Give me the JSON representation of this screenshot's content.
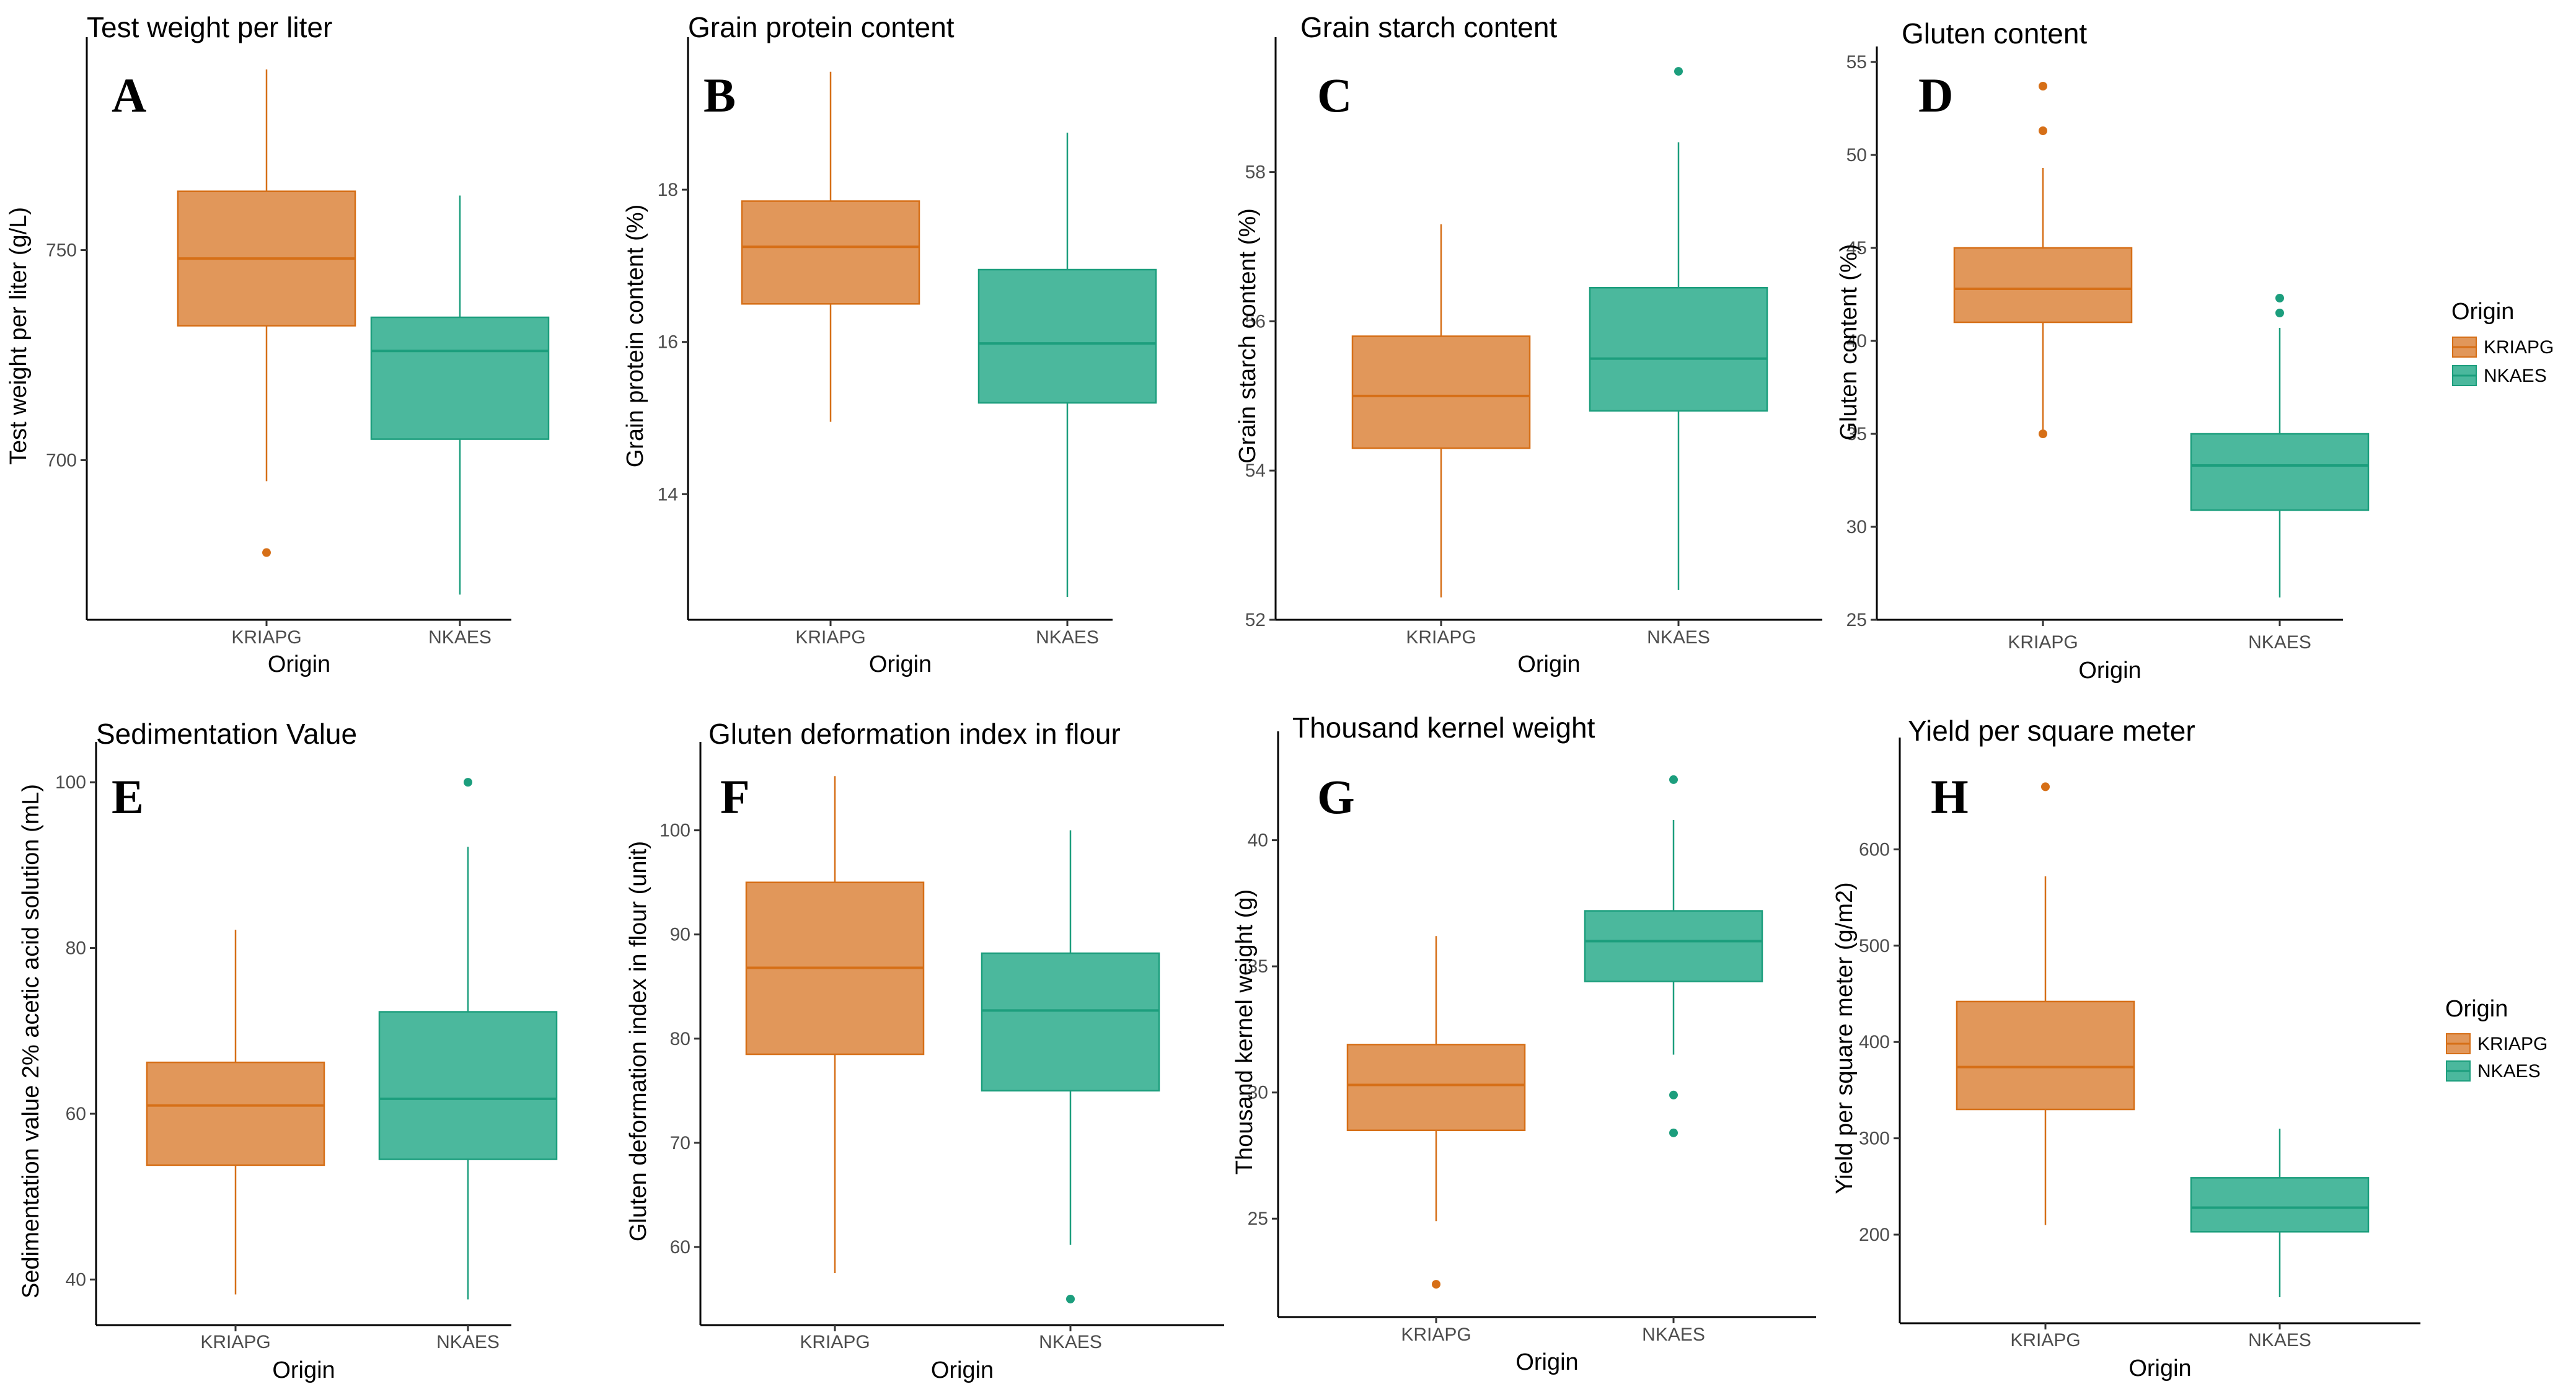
{
  "colors": {
    "KRIAPG": {
      "fill": "#E1975A",
      "line": "#D66F17"
    },
    "NKAES": {
      "fill": "#4BB89D",
      "line": "#1C9E7D"
    }
  },
  "legend": {
    "title": "Origin",
    "entries": [
      "KRIAPG",
      "NKAES"
    ]
  },
  "chart_data": [
    {
      "type": "boxplot",
      "panel": "A",
      "title": "Test weight per liter",
      "xlabel": "Origin",
      "ylabel": "Test weight per liter (g/L)",
      "ylim": [
        662,
        797
      ],
      "yticks": [
        700,
        750
      ],
      "legend": false,
      "categories": [
        "KRIAPG",
        "NKAES"
      ],
      "boxes": [
        {
          "name": "KRIAPG",
          "min": 695,
          "q1": 732,
          "median": 748,
          "q3": 764,
          "max": 793,
          "outliers": [
            678
          ]
        },
        {
          "name": "NKAES",
          "min": 668,
          "q1": 705,
          "median": 726,
          "q3": 734,
          "max": 763,
          "outliers": []
        }
      ]
    },
    {
      "type": "boxplot",
      "panel": "B",
      "title": "Grain protein content",
      "xlabel": "Origin",
      "ylabel": "Grain protein content (%)",
      "ylim": [
        12.35,
        19.8
      ],
      "yticks": [
        14,
        16,
        18
      ],
      "legend": false,
      "categories": [
        "KRIAPG",
        "NKAES"
      ],
      "boxes": [
        {
          "name": "KRIAPG",
          "min": 14.95,
          "q1": 16.5,
          "median": 17.25,
          "q3": 17.85,
          "max": 19.55,
          "outliers": []
        },
        {
          "name": "NKAES",
          "min": 12.65,
          "q1": 15.2,
          "median": 15.98,
          "q3": 16.95,
          "max": 18.75,
          "outliers": []
        }
      ]
    },
    {
      "type": "boxplot",
      "panel": "C",
      "title": "Grain starch content",
      "xlabel": "Origin",
      "ylabel": "Grain starch content (%)",
      "ylim": [
        52,
        59.6
      ],
      "yticks": [
        52,
        54,
        56,
        58
      ],
      "legend": false,
      "categories": [
        "KRIAPG",
        "NKAES"
      ],
      "boxes": [
        {
          "name": "KRIAPG",
          "min": 52.3,
          "q1": 54.3,
          "median": 55,
          "q3": 55.8,
          "max": 57.3,
          "outliers": []
        },
        {
          "name": "NKAES",
          "min": 52.4,
          "q1": 54.8,
          "median": 55.5,
          "q3": 56.45,
          "max": 58.4,
          "outliers": [
            59.35
          ]
        }
      ]
    },
    {
      "type": "boxplot",
      "panel": "D",
      "title": "Gluten content",
      "xlabel": "Origin",
      "ylabel": "Gluten content (%)",
      "ylim": [
        25,
        55
      ],
      "yticks": [
        25,
        30,
        35,
        40,
        45,
        50,
        55
      ],
      "legend": true,
      "categories": [
        "KRIAPG",
        "NKAES"
      ],
      "boxes": [
        {
          "name": "KRIAPG",
          "min": 35,
          "q1": 41,
          "median": 42.8,
          "q3": 45,
          "max": 49.3,
          "outliers": [
            35,
            51.3,
            53.7
          ]
        },
        {
          "name": "NKAES",
          "min": 26.2,
          "q1": 30.9,
          "median": 33.3,
          "q3": 35,
          "max": 40.7,
          "outliers": [
            41.5,
            42.3
          ]
        }
      ]
    },
    {
      "type": "boxplot",
      "panel": "E",
      "title": "Sedimentation Value",
      "xlabel": "Origin",
      "ylabel": "Sedimentation value 2% acetic acid solution (mL)",
      "ylim": [
        34.5,
        103
      ],
      "yticks": [
        40,
        60,
        80,
        100
      ],
      "legend": false,
      "categories": [
        "KRIAPG",
        "NKAES"
      ],
      "boxes": [
        {
          "name": "KRIAPG",
          "min": 38.2,
          "q1": 53.8,
          "median": 61,
          "q3": 66.2,
          "max": 82.2,
          "outliers": []
        },
        {
          "name": "NKAES",
          "min": 37.6,
          "q1": 54.5,
          "median": 61.8,
          "q3": 72.3,
          "max": 92.2,
          "outliers": [
            100
          ]
        }
      ]
    },
    {
      "type": "boxplot",
      "panel": "F",
      "title": "Gluten deformation index in flour",
      "xlabel": "Origin",
      "ylabel": "Gluten deformation index in flour (unit)",
      "ylim": [
        52.5,
        107
      ],
      "yticks": [
        60,
        70,
        80,
        90,
        100
      ],
      "legend": false,
      "categories": [
        "KRIAPG",
        "NKAES"
      ],
      "boxes": [
        {
          "name": "KRIAPG",
          "min": 57.5,
          "q1": 78.5,
          "median": 86.8,
          "q3": 95,
          "max": 105.2,
          "outliers": []
        },
        {
          "name": "NKAES",
          "min": 60.2,
          "q1": 75,
          "median": 82.7,
          "q3": 88.2,
          "max": 100,
          "outliers": [
            55
          ]
        }
      ]
    },
    {
      "type": "boxplot",
      "panel": "G",
      "title": "Thousand kernel weight",
      "xlabel": "Origin",
      "ylabel": "Thousand kernel weight (g)",
      "ylim": [
        21.1,
        43.7
      ],
      "yticks": [
        25,
        30,
        35,
        40
      ],
      "legend": false,
      "categories": [
        "KRIAPG",
        "NKAES"
      ],
      "boxes": [
        {
          "name": "KRIAPG",
          "min": 24.9,
          "q1": 28.5,
          "median": 30.3,
          "q3": 31.9,
          "max": 36.2,
          "outliers": [
            22.4
          ]
        },
        {
          "name": "NKAES",
          "min": 31.5,
          "q1": 34.4,
          "median": 36,
          "q3": 37.2,
          "max": 40.8,
          "outliers": [
            29.9,
            28.4,
            42.4
          ]
        }
      ]
    },
    {
      "type": "boxplot",
      "panel": "H",
      "title": "Yield per square meter",
      "xlabel": "Origin",
      "ylabel": "Yield per square meter (g/m2)",
      "ylim": [
        108,
        700
      ],
      "yticks": [
        200,
        300,
        400,
        500,
        600
      ],
      "legend": true,
      "categories": [
        "KRIAPG",
        "NKAES"
      ],
      "boxes": [
        {
          "name": "KRIAPG",
          "min": 210,
          "q1": 330,
          "median": 374,
          "q3": 442,
          "max": 572,
          "outliers": [
            665
          ]
        },
        {
          "name": "NKAES",
          "min": 135,
          "q1": 203,
          "median": 228,
          "q3": 259,
          "max": 310,
          "outliers": []
        }
      ]
    }
  ]
}
